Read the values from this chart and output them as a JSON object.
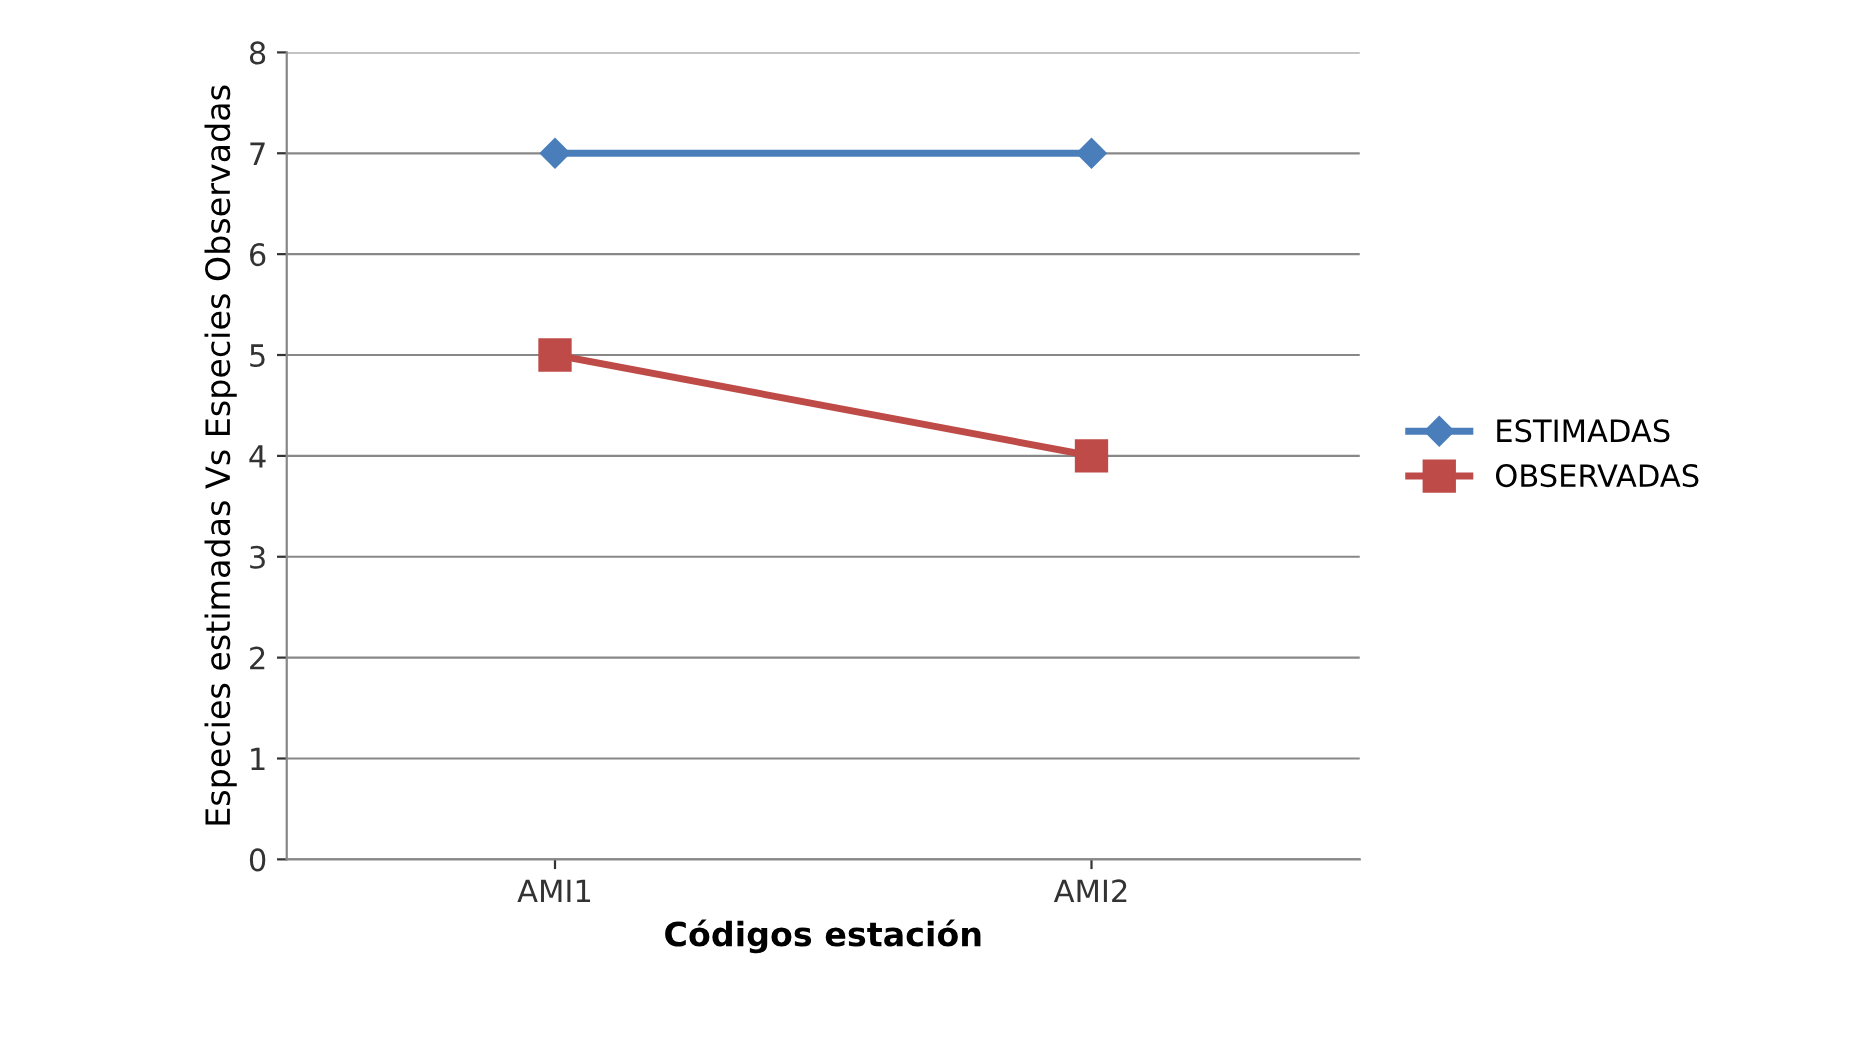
{
  "chart_data": {
    "type": "line",
    "xlabel": "Códigos estación",
    "ylabel": "Especies estimadas Vs Especies Observadas",
    "categories": [
      "AMI1",
      "AMI2"
    ],
    "series": [
      {
        "name": "ESTIMADAS",
        "color": "#4a7ebb",
        "values": [
          7,
          7
        ],
        "marker": "diamond"
      },
      {
        "name": "OBSERVADAS",
        "color": "#be4b48",
        "values": [
          5,
          4
        ],
        "marker": "square"
      }
    ],
    "ylim": [
      0,
      8
    ],
    "yticks": [
      0,
      1,
      2,
      3,
      4,
      5,
      6,
      7,
      8
    ],
    "grid": "y",
    "legend": "right"
  }
}
